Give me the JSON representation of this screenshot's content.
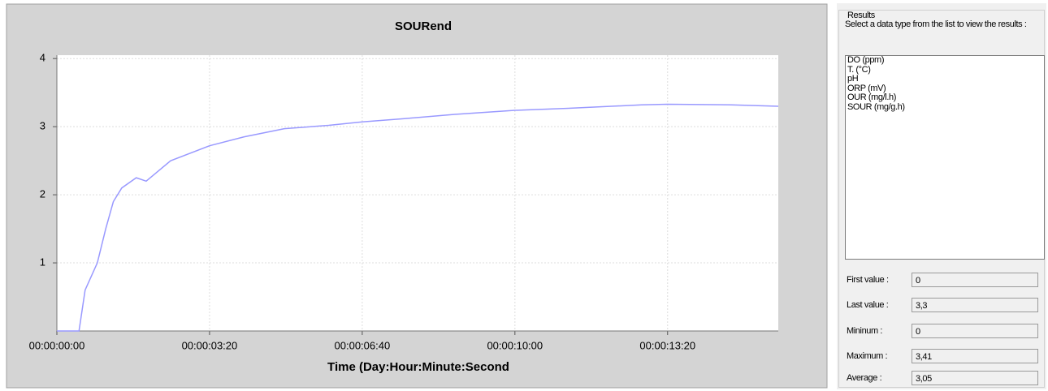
{
  "chart_data": {
    "type": "line",
    "title": "SOURend",
    "x_label": "Time (Day:Hour:Minute:Second",
    "x": [
      0,
      29,
      37,
      53,
      64,
      74,
      85,
      104,
      117,
      149,
      200,
      245,
      298,
      356,
      400,
      457,
      521,
      600,
      670,
      766,
      800,
      883,
      945
    ],
    "series": [
      {
        "name": "SOUR",
        "color": "#9999ff",
        "values": [
          0,
          0,
          0.6,
          1.0,
          1.5,
          1.9,
          2.1,
          2.25,
          2.2,
          2.5,
          2.72,
          2.85,
          2.97,
          3.02,
          3.07,
          3.12,
          3.18,
          3.24,
          3.27,
          3.32,
          3.33,
          3.32,
          3.3
        ]
      }
    ],
    "xlim": [
      0,
      945
    ],
    "ylim": [
      0,
      4.05
    ],
    "xticks": [
      {
        "value": 0,
        "label": "00:00:00:00"
      },
      {
        "value": 200,
        "label": "00:00:03:20"
      },
      {
        "value": 400,
        "label": "00:00:06:40"
      },
      {
        "value": 600,
        "label": "00:00:10:00"
      },
      {
        "value": 800,
        "label": "00:00:13:20"
      }
    ],
    "yticks": [
      1,
      2,
      3,
      4
    ],
    "grid": true
  },
  "results": {
    "title": "Results",
    "instruction": "Select a data type from the list to view the results :",
    "list": [
      "DO (ppm)",
      "T. (°C)",
      "pH",
      "ORP (mV)",
      "OUR (mg/l.h)",
      "SOUR (mg/g.h)"
    ],
    "fields": [
      {
        "label": "First value :",
        "value": "0"
      },
      {
        "label": "Last value :",
        "value": "3,3"
      },
      {
        "label": "Mininum :",
        "value": "0"
      },
      {
        "label": "Maximum :",
        "value": "3,41"
      },
      {
        "label": "Average :",
        "value": "3,05"
      }
    ]
  }
}
